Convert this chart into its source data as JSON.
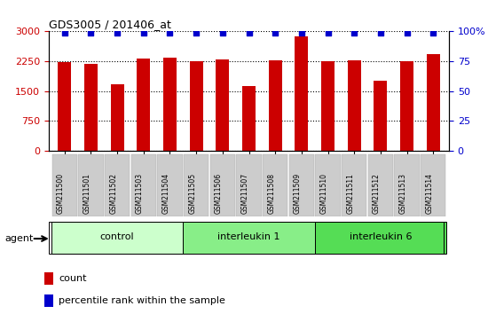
{
  "title": "GDS3005 / 201406_at",
  "samples": [
    "GSM211500",
    "GSM211501",
    "GSM211502",
    "GSM211503",
    "GSM211504",
    "GSM211505",
    "GSM211506",
    "GSM211507",
    "GSM211508",
    "GSM211509",
    "GSM211510",
    "GSM211511",
    "GSM211512",
    "GSM211513",
    "GSM211514"
  ],
  "counts": [
    2230,
    2190,
    1670,
    2310,
    2350,
    2250,
    2290,
    1620,
    2280,
    2880,
    2250,
    2270,
    1760,
    2240,
    2430
  ],
  "percentiles": [
    99,
    99,
    99,
    99,
    99,
    99,
    99,
    99,
    99,
    99,
    99,
    99,
    99,
    99,
    99
  ],
  "bar_color": "#cc0000",
  "dot_color": "#0000cc",
  "ylim_left": [
    0,
    3000
  ],
  "ylim_right": [
    0,
    100
  ],
  "yticks_left": [
    0,
    750,
    1500,
    2250,
    3000
  ],
  "ytick_labels_left": [
    "0",
    "750",
    "1500",
    "2250",
    "3000"
  ],
  "yticks_right": [
    0,
    25,
    50,
    75,
    100
  ],
  "ytick_labels_right": [
    "0",
    "25",
    "50",
    "75",
    "100%"
  ],
  "group_list": [
    [
      "control",
      0,
      4
    ],
    [
      "interleukin 1",
      5,
      9
    ],
    [
      "interleukin 6",
      10,
      14
    ]
  ],
  "group_colors": [
    "#ccffcc",
    "#88ee88",
    "#55dd55"
  ],
  "agent_label": "agent",
  "legend_count_label": "count",
  "legend_pct_label": "percentile rank within the sample",
  "background_color": "#ffffff",
  "plot_bg_color": "#ffffff",
  "tick_label_color_left": "#cc0000",
  "tick_label_color_right": "#0000cc",
  "title_color": "#000000",
  "bar_width": 0.5,
  "grid_color": "#000000"
}
